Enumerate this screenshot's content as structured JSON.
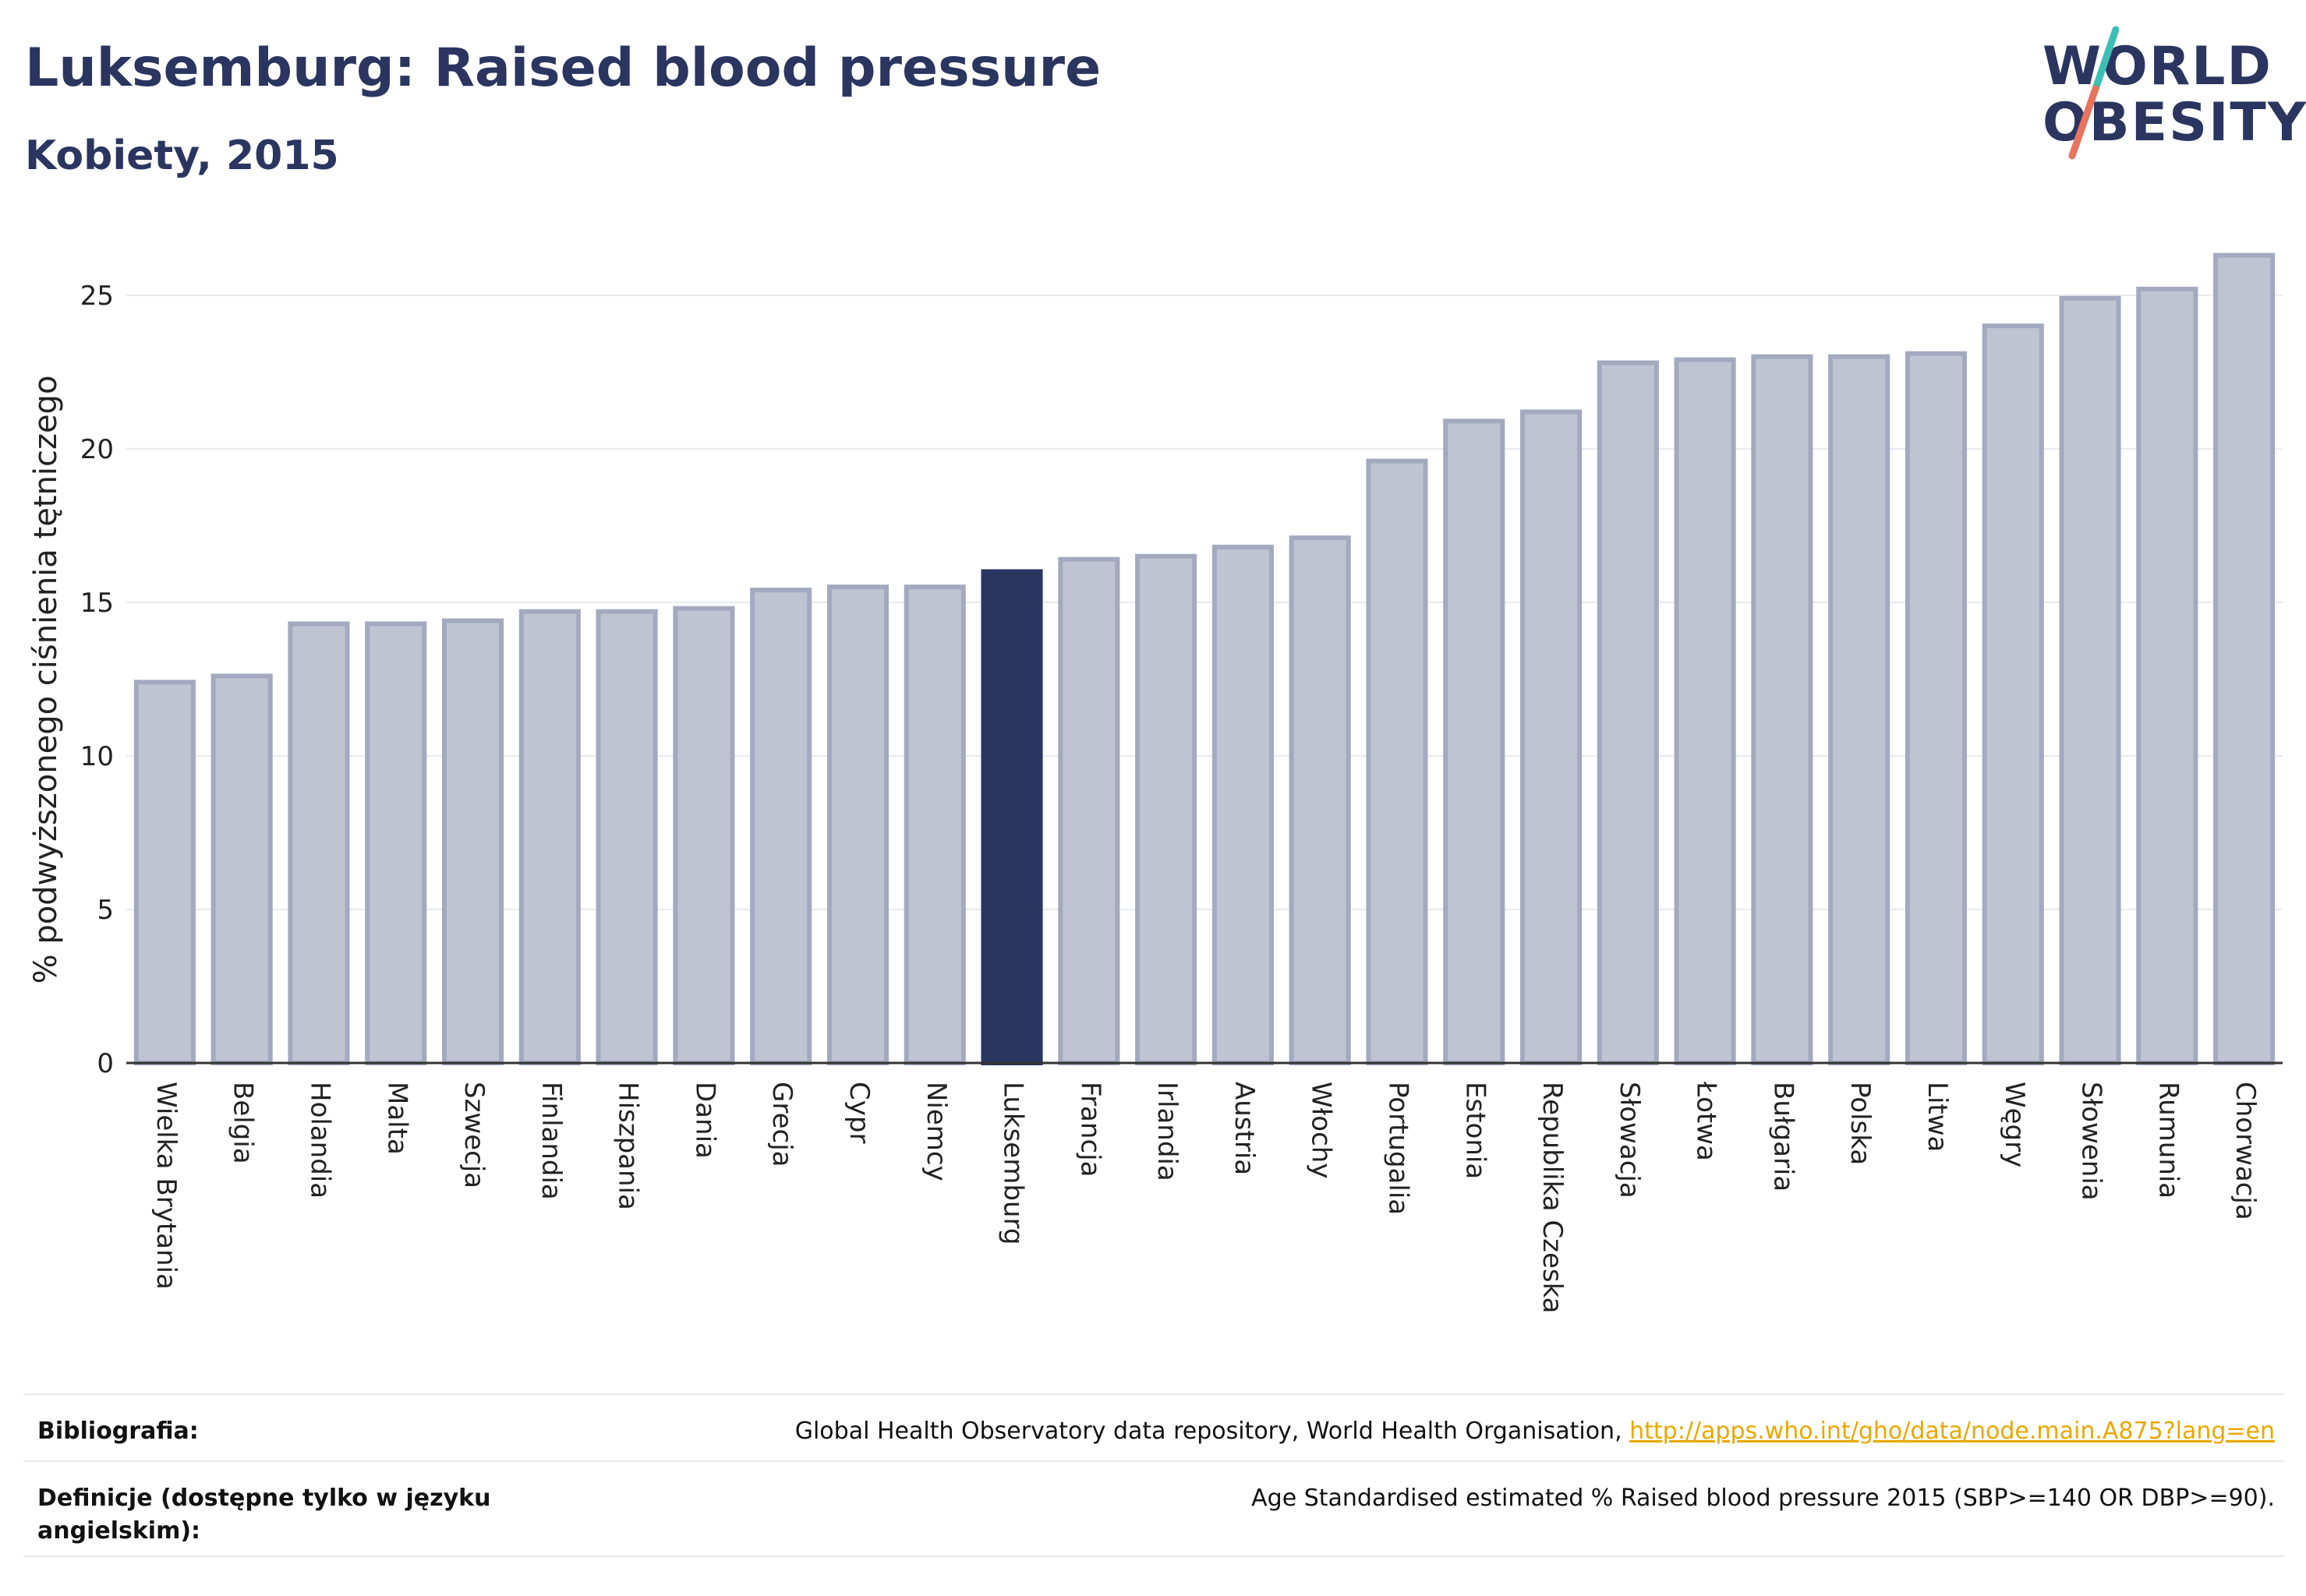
{
  "header": {
    "title": "Luksemburg: Raised blood pressure",
    "subtitle": "Kobiety, 2015"
  },
  "logo": {
    "line1": "WORLD",
    "line2": "OBESITY",
    "colors": {
      "text": "#2a3560",
      "slash_top": "#3cbfb4",
      "slash_bottom": "#e8735f"
    }
  },
  "chart_data": {
    "type": "bar",
    "title": "",
    "xlabel": "",
    "ylabel": "% podwyższonego ciśnienia tętniczego",
    "ylim": [
      0,
      27
    ],
    "yticks": [
      0,
      5,
      10,
      15,
      20,
      25
    ],
    "grid": true,
    "highlight": "Luksemburg",
    "colors": {
      "bar": "#c0c4d2",
      "bar_border": "#a3a9bf",
      "highlight": "#2a3560",
      "grid": "#e8eaf0",
      "axis": "#333333"
    },
    "categories": [
      "Wielka Brytania",
      "Belgia",
      "Holandia",
      "Malta",
      "Szwecja",
      "Finlandia",
      "Hiszpania",
      "Dania",
      "Grecja",
      "Cypr",
      "Niemcy",
      "Luksemburg",
      "Francja",
      "Irlandia",
      "Austria",
      "Włochy",
      "Portugalia",
      "Estonia",
      "Republika Czeska",
      "Słowacja",
      "Łotwa",
      "Bułgaria",
      "Polska",
      "Litwa",
      "Węgry",
      "Słowenia",
      "Rumunia",
      "Chorwacja"
    ],
    "values": [
      12.4,
      12.6,
      14.3,
      14.3,
      14.4,
      14.7,
      14.7,
      14.8,
      15.4,
      15.5,
      15.5,
      16.0,
      16.4,
      16.5,
      16.8,
      17.1,
      19.6,
      20.9,
      21.2,
      22.8,
      22.9,
      23.0,
      23.0,
      23.1,
      24.0,
      24.9,
      25.2,
      26.3
    ]
  },
  "footer": {
    "bibliography_label": "Bibliografia:",
    "bibliography_text": "Global Health Observatory data repository, World Health Organisation, ",
    "bibliography_link": "http://apps.who.int/gho/data/node.main.A875?lang=en",
    "definitions_label": "Definicje (dostępne tylko w języku angielskim):",
    "definitions_text": "Age Standardised estimated % Raised blood pressure 2015 (SBP>=140 OR DBP>=90)."
  }
}
